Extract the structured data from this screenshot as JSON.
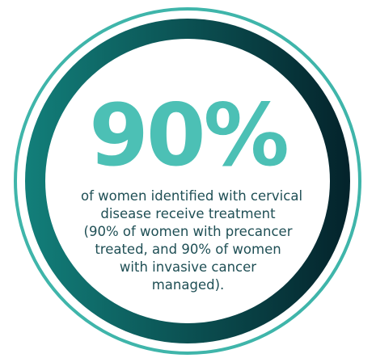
{
  "stat": {
    "number": "90%",
    "description_lines": [
      "of women identified with cervical",
      "disease receive treatment",
      "(90% of women with precancer",
      "treated, and 90% of women",
      "with invasive cancer",
      "managed)."
    ]
  },
  "colors": {
    "number": "#4cc0b5",
    "description": "#1f4f55",
    "outer_ring": "#3fb5aa",
    "ring_gradient_left": "#127f7a",
    "ring_gradient_right": "#04232b",
    "inner_circle": "#ffffff"
  }
}
